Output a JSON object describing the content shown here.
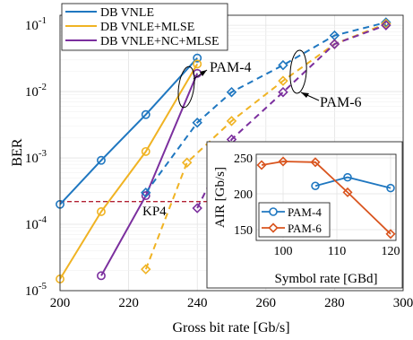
{
  "chart_data": [
    {
      "type": "line",
      "xlabel": "Gross bit rate [Gb/s]",
      "ylabel": "BER",
      "xlim": [
        200,
        300
      ],
      "ylim_log10": [
        -5,
        -0.85
      ],
      "y_scale": "log",
      "grid": true,
      "legend_position": "top-left",
      "x_ticks": [
        200,
        220,
        240,
        260,
        280,
        300
      ],
      "x_tick_labels": [
        "200",
        "220",
        "240",
        "260",
        "280",
        "300"
      ],
      "y_tick_labels": [
        {
          "base": "10",
          "exp": "-5"
        },
        {
          "base": "10",
          "exp": "-4"
        },
        {
          "base": "10",
          "exp": "-3"
        },
        {
          "base": "10",
          "exp": "-2"
        },
        {
          "base": "10",
          "exp": "-1"
        }
      ],
      "series": [
        {
          "name": "DB VNLE",
          "color": "#1f77c0",
          "marker": "circle",
          "dash": "solid",
          "group": "PAM-4",
          "x": [
            200,
            212,
            225,
            240
          ],
          "y": [
            0.0002,
            0.00092,
            0.0045,
            0.032
          ]
        },
        {
          "name": "DB VNLE+MLSE",
          "color": "#f0b323",
          "marker": "circle",
          "dash": "solid",
          "group": "PAM-4",
          "x": [
            200,
            212,
            225,
            240
          ],
          "y": [
            1.5e-05,
            0.000155,
            0.00125,
            0.026
          ]
        },
        {
          "name": "DB VNLE+NC+MLSE",
          "color": "#7b2f9e",
          "marker": "circle",
          "dash": "solid",
          "group": "PAM-4",
          "x": [
            212,
            225,
            240
          ],
          "y": [
            1.68e-05,
            0.00027,
            0.0188
          ]
        },
        {
          "name": "",
          "color": "#1f77c0",
          "marker": "diamond",
          "dash": "dashed",
          "group": "PAM-6",
          "x": [
            225,
            240,
            250,
            265,
            280,
            295
          ],
          "y": [
            0.0003,
            0.0034,
            0.0098,
            0.025,
            0.07,
            0.11
          ]
        },
        {
          "name": "",
          "color": "#f0b323",
          "marker": "diamond",
          "dash": "dashed",
          "group": "PAM-6",
          "x": [
            225,
            237,
            250,
            265,
            280,
            295
          ],
          "y": [
            2.1e-05,
            0.00085,
            0.0036,
            0.0145,
            0.052,
            0.105
          ]
        },
        {
          "name": "",
          "color": "#7b2f9e",
          "marker": "diamond",
          "dash": "dashed",
          "group": "PAM-6",
          "x": [
            240,
            250,
            265,
            280,
            295
          ],
          "y": [
            0.000175,
            0.0019,
            0.0098,
            0.052,
            0.1
          ]
        }
      ],
      "reference_line": {
        "label": "KP4",
        "y": 0.00022,
        "color": "#b22234"
      },
      "annotations": [
        {
          "text": "PAM-4",
          "group": "PAM-4"
        },
        {
          "text": "PAM-6",
          "group": "PAM-6"
        }
      ]
    },
    {
      "type": "line",
      "xlabel": "Symbol rate [GBd]",
      "ylabel": "AIR [Gb/s]",
      "xlim": [
        95,
        121
      ],
      "ylim": [
        135,
        255
      ],
      "grid": true,
      "legend_position": "bottom-left",
      "x_ticks": [
        100,
        110,
        120
      ],
      "x_tick_labels": [
        "100",
        "110",
        "120"
      ],
      "y_ticks": [
        150,
        200,
        250
      ],
      "y_tick_labels": [
        "150",
        "200",
        "250"
      ],
      "series": [
        {
          "name": "PAM-4",
          "color": "#1f77c0",
          "marker": "circle",
          "x": [
            106,
            112,
            120
          ],
          "y": [
            211,
            223,
            208
          ]
        },
        {
          "name": "PAM-6",
          "color": "#d9541e",
          "marker": "diamond",
          "x": [
            96,
            100,
            106,
            112,
            120
          ],
          "y": [
            240,
            245,
            244,
            202,
            144
          ]
        }
      ]
    }
  ]
}
